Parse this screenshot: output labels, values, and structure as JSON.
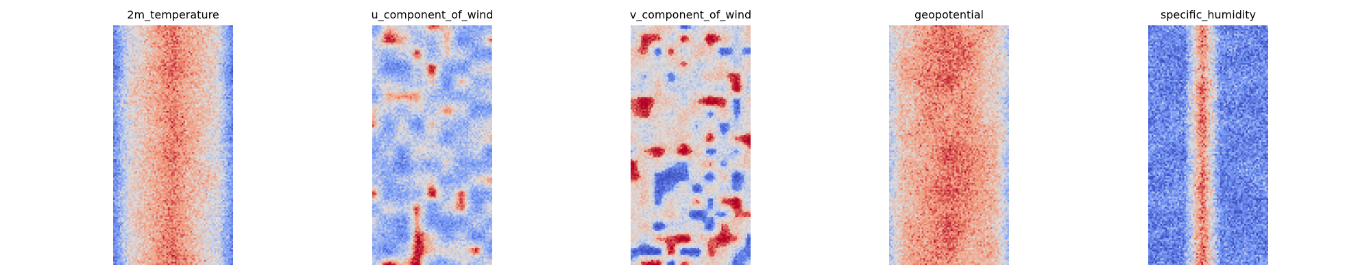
{
  "chart_data": [
    {
      "type": "heatmap",
      "title": "2m_temperature",
      "colormap": "coolwarm",
      "grid": false,
      "axes_visible": false,
      "pattern": "warm_center_cold_edges"
    },
    {
      "type": "heatmap",
      "title": "u_component_of_wind",
      "colormap": "coolwarm",
      "grid": false,
      "axes_visible": false,
      "pattern": "cool_background_scattered_warm"
    },
    {
      "type": "heatmap",
      "title": "v_component_of_wind",
      "colormap": "coolwarm",
      "grid": false,
      "axes_visible": false,
      "pattern": "neutral_background_mixed_blobs"
    },
    {
      "type": "heatmap",
      "title": "geopotential",
      "colormap": "coolwarm",
      "grid": false,
      "axes_visible": false,
      "pattern": "warm_field_cool_edges"
    },
    {
      "type": "heatmap",
      "title": "specific_humidity",
      "colormap": "coolwarm",
      "grid": false,
      "axes_visible": false,
      "pattern": "cold_field_warm_center_band"
    }
  ]
}
